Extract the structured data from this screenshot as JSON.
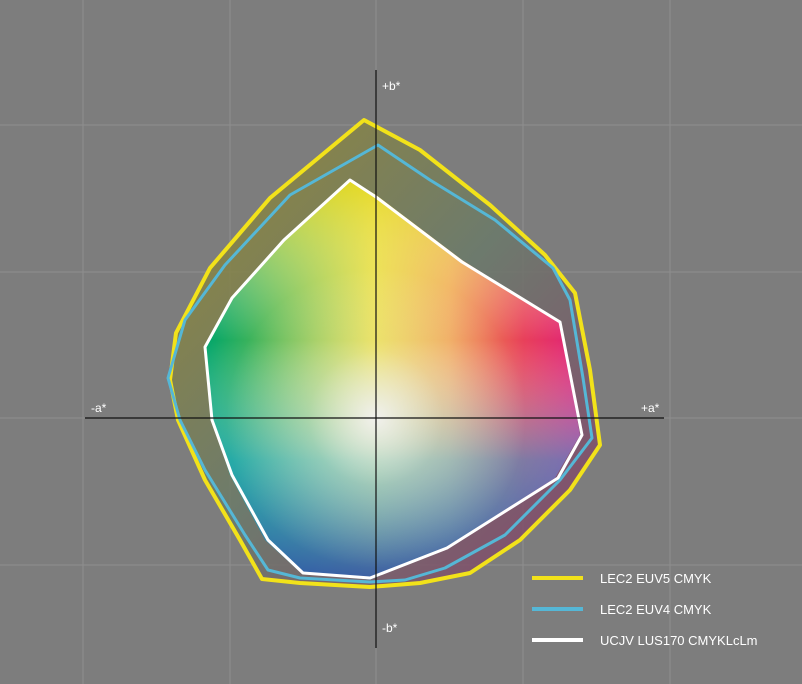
{
  "axes": {
    "b_plus": "+b*",
    "b_minus": "-b*",
    "a_plus": "+a*",
    "a_minus": "-a*"
  },
  "legend": [
    {
      "label": "LEC2 EUV5 CMYK",
      "color": "#f2e21a"
    },
    {
      "label": "LEC2 EUV4 CMYK",
      "color": "#55b7d6"
    },
    {
      "label": "UCJV LUS170 CMYKLcLm",
      "color": "#ffffff"
    }
  ],
  "colors": {
    "background": "#7d7d7d",
    "grid": "#8f8f8f",
    "axis": "#111111",
    "outer_fill": "#5c7d70"
  }
}
